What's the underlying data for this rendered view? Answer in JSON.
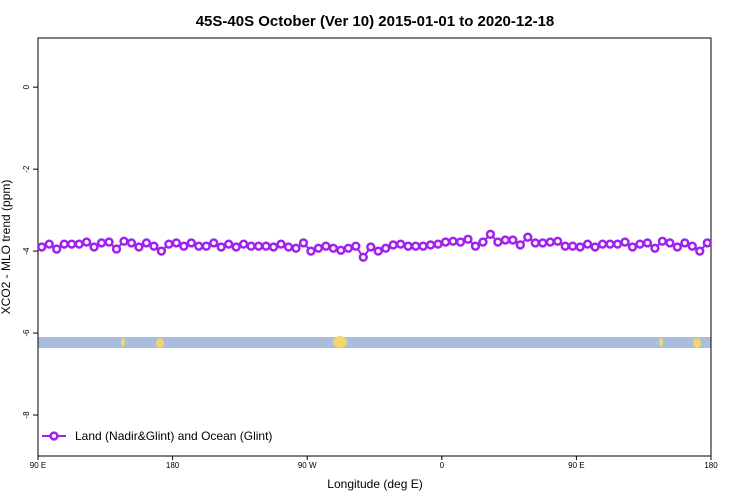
{
  "chart_data": {
    "type": "line",
    "title": "45S-40S October (Ver 10)   2015-01-01 to 2020-12-18",
    "x_label": "Longitude (deg E)",
    "y_label": "XCO2 - MLO trend (ppm)",
    "x": [
      92.5,
      97.5,
      102.5,
      107.5,
      112.5,
      117.5,
      122.5,
      127.5,
      132.5,
      137.5,
      142.5,
      147.5,
      152.5,
      157.5,
      162.5,
      167.5,
      172.5,
      177.5,
      182.5,
      187.5,
      192.5,
      197.5,
      202.5,
      207.5,
      212.5,
      217.5,
      222.5,
      227.5,
      232.5,
      237.5,
      242.5,
      247.5,
      252.5,
      257.5,
      262.5,
      267.5,
      272.5,
      277.5,
      282.5,
      287.5,
      292.5,
      297.5,
      302.5,
      307.5,
      312.5,
      317.5,
      322.5,
      327.5,
      332.5,
      337.5,
      342.5,
      347.5,
      352.5,
      357.5,
      362.5,
      367.5,
      372.5,
      377.5,
      382.5,
      387.5,
      392.5,
      397.5,
      402.5,
      407.5,
      412.5,
      417.5,
      422.5,
      427.5,
      432.5,
      437.5,
      442.5,
      447.5,
      452.5,
      457.5,
      462.5,
      467.5,
      472.5,
      477.5,
      482.5,
      487.5,
      492.5,
      497.5,
      502.5,
      507.5,
      512.5,
      517.5,
      522.5,
      527.5,
      532.5,
      537.5
    ],
    "series": [
      {
        "name": "Land (Nadir&Glint) and Ocean (Glint)",
        "color": "#a020f0",
        "values": [
          -3.9,
          -3.83,
          -3.95,
          -3.83,
          -3.83,
          -3.83,
          -3.78,
          -3.9,
          -3.8,
          -3.78,
          -3.95,
          -3.76,
          -3.8,
          -3.9,
          -3.8,
          -3.88,
          -4.0,
          -3.83,
          -3.8,
          -3.88,
          -3.8,
          -3.88,
          -3.88,
          -3.8,
          -3.9,
          -3.83,
          -3.9,
          -3.83,
          -3.88,
          -3.88,
          -3.88,
          -3.9,
          -3.83,
          -3.9,
          -3.93,
          -3.8,
          -4.0,
          -3.93,
          -3.88,
          -3.93,
          -3.98,
          -3.93,
          -3.88,
          -4.15,
          -3.9,
          -4.0,
          -3.93,
          -3.85,
          -3.83,
          -3.88,
          -3.88,
          -3.88,
          -3.85,
          -3.83,
          -3.78,
          -3.76,
          -3.78,
          -3.71,
          -3.88,
          -3.78,
          -3.59,
          -3.78,
          -3.73,
          -3.73,
          -3.85,
          -3.66,
          -3.8,
          -3.8,
          -3.78,
          -3.76,
          -3.88,
          -3.88,
          -3.9,
          -3.83,
          -3.9,
          -3.83,
          -3.83,
          -3.83,
          -3.78,
          -3.9,
          -3.83,
          -3.8,
          -3.93,
          -3.76,
          -3.8,
          -3.9,
          -3.8,
          -3.88,
          -4.0,
          -3.8
        ]
      }
    ],
    "xlim": [
      90,
      540
    ],
    "xticks": [
      {
        "value": 90,
        "label": "90 E"
      },
      180,
      {
        "value": 270,
        "label": "90 W"
      },
      {
        "value": 360,
        "label": "0"
      },
      {
        "value": 450,
        "label": "90 E"
      },
      {
        "value": 540,
        "label": "180"
      }
    ],
    "ylim": [
      -9,
      1.2
    ],
    "yticks": [
      0,
      -2,
      -4,
      -6,
      -8
    ],
    "legend": "bottom-left"
  }
}
